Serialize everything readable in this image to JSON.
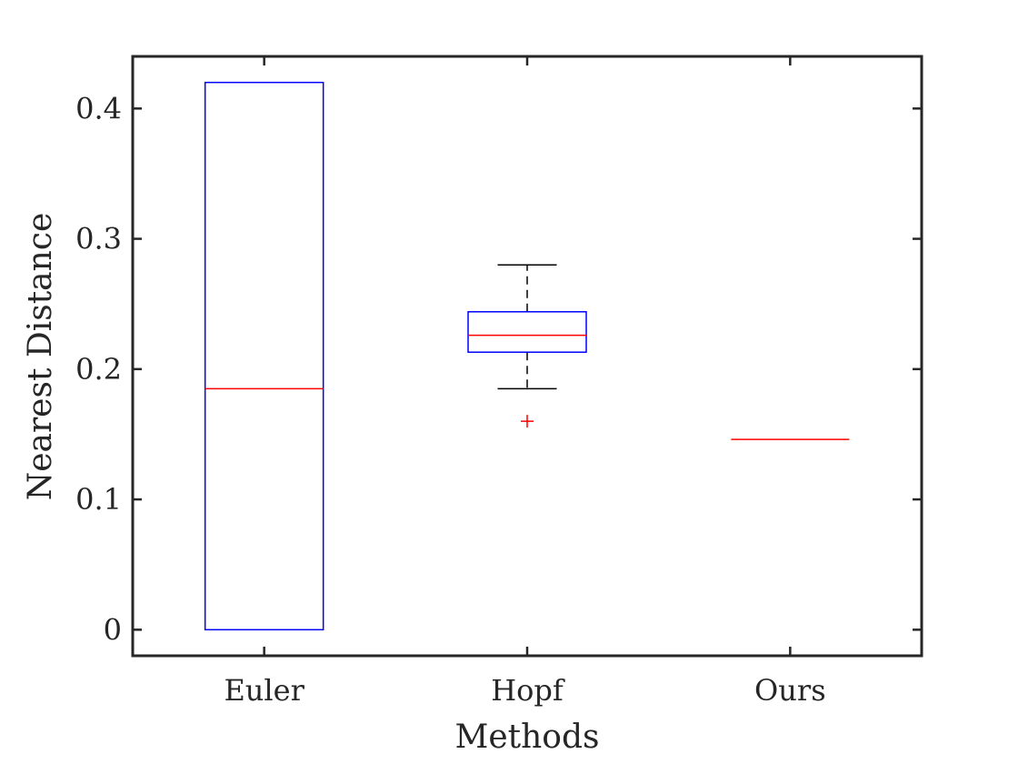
{
  "chart_data": {
    "type": "boxplot",
    "title": "",
    "xlabel": "Methods",
    "ylabel": "Nearest Distance",
    "categories": [
      "Euler",
      "Hopf",
      "Ours"
    ],
    "ylim": [
      -0.02,
      0.44
    ],
    "yticks": [
      0,
      0.1,
      0.2,
      0.3,
      0.4
    ],
    "ytick_labels": [
      "0",
      "0.1",
      "0.2",
      "0.3",
      "0.4"
    ],
    "grid": false,
    "box_color": "#0000ff",
    "median_color": "#ff0000",
    "whisker_color": "#000000",
    "outlier_color": "#ff0000",
    "axis_color": "#262626",
    "boxes": [
      {
        "category": "Euler",
        "whisker_low": 0.0,
        "q1": 0.0,
        "median": 0.185,
        "q3": 0.42,
        "whisker_high": 0.42,
        "outliers": []
      },
      {
        "category": "Hopf",
        "whisker_low": 0.185,
        "q1": 0.213,
        "median": 0.226,
        "q3": 0.244,
        "whisker_high": 0.28,
        "outliers": [
          0.16
        ]
      },
      {
        "category": "Ours",
        "whisker_low": 0.146,
        "q1": 0.146,
        "median": 0.146,
        "q3": 0.146,
        "whisker_high": 0.146,
        "outliers": []
      }
    ]
  }
}
